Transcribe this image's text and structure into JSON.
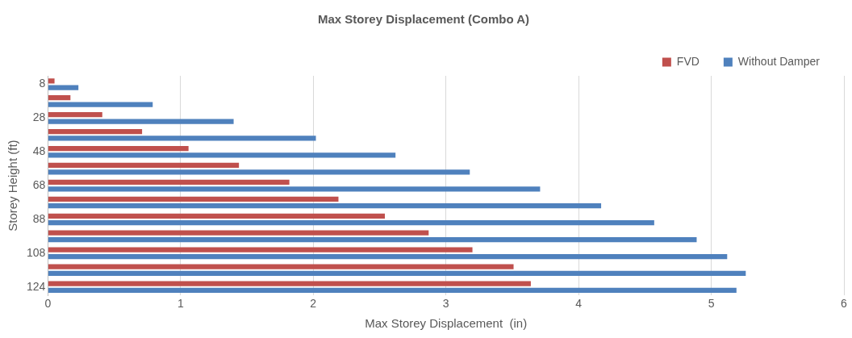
{
  "chart_data": {
    "type": "bar",
    "orientation": "horizontal",
    "title": "Max Storey Displacement (Combo A)",
    "xlabel": "Max Storey Displacement  (in)",
    "ylabel": "Storey Height (ft)",
    "categories": [
      "8",
      null,
      "28",
      null,
      "48",
      null,
      "68",
      null,
      "88",
      null,
      "108",
      null,
      "124"
    ],
    "series": [
      {
        "name": "FVD",
        "color": "#c0504d",
        "values": [
          0.05,
          0.17,
          0.41,
          0.71,
          1.06,
          1.44,
          1.82,
          2.19,
          2.54,
          2.87,
          3.2,
          3.51,
          3.64
        ]
      },
      {
        "name": "Without Damper",
        "color": "#4f81bd",
        "values": [
          0.23,
          0.79,
          1.4,
          2.02,
          2.62,
          3.18,
          3.71,
          4.17,
          4.57,
          4.89,
          5.12,
          5.26,
          5.19
        ]
      }
    ],
    "xlim": [
      0,
      6
    ],
    "xticks": [
      0,
      1,
      2,
      3,
      4,
      5,
      6
    ],
    "grid": "x",
    "legend": "top right"
  }
}
